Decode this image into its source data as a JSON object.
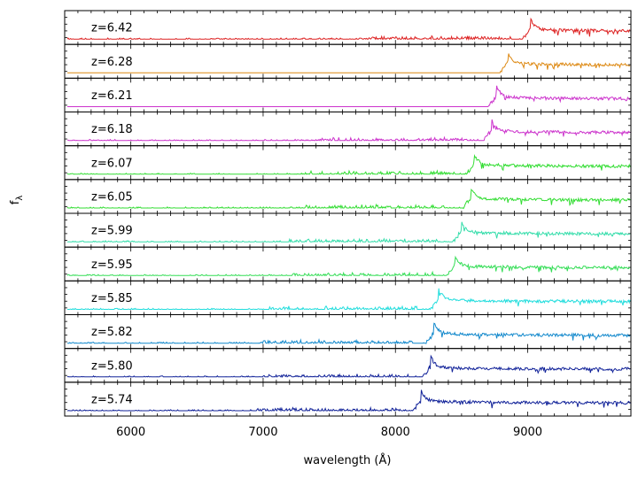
{
  "chart_data": {
    "type": "line",
    "title": "",
    "xlabel": "wavelength (Å)",
    "ylabel": "f",
    "ylabel_sub": "λ",
    "xlim": [
      5500,
      9780
    ],
    "xticks": [
      6000,
      7000,
      8000,
      9000
    ],
    "tick_labels": [
      "6000",
      "7000",
      "8000",
      "9000"
    ],
    "grid": false,
    "legend": "none",
    "series": [
      {
        "name": "z=6.42",
        "redshift": 6.42,
        "color": "#dd2222",
        "blue_noise": true,
        "flux": "normalized"
      },
      {
        "name": "z=6.28",
        "redshift": 6.28,
        "color": "#dd8811",
        "blue_noise": false,
        "flux": "normalized"
      },
      {
        "name": "z=6.21",
        "redshift": 6.21,
        "color": "#cc33cc",
        "blue_noise": false,
        "flux": "normalized"
      },
      {
        "name": "z=6.18",
        "redshift": 6.18,
        "color": "#cc33cc",
        "blue_noise": true,
        "flux": "normalized"
      },
      {
        "name": "z=6.07",
        "redshift": 6.07,
        "color": "#33dd33",
        "blue_noise": true,
        "flux": "normalized"
      },
      {
        "name": "z=6.05",
        "redshift": 6.05,
        "color": "#33dd33",
        "blue_noise": true,
        "flux": "normalized"
      },
      {
        "name": "z=5.99",
        "redshift": 5.99,
        "color": "#33ddaa",
        "blue_noise": true,
        "flux": "normalized"
      },
      {
        "name": "z=5.95",
        "redshift": 5.95,
        "color": "#33dd55",
        "blue_noise": true,
        "flux": "normalized"
      },
      {
        "name": "z=5.85",
        "redshift": 5.85,
        "color": "#22dddd",
        "blue_noise": true,
        "flux": "normalized"
      },
      {
        "name": "z=5.82",
        "redshift": 5.82,
        "color": "#1188cc",
        "blue_noise": true,
        "flux": "normalized"
      },
      {
        "name": "z=5.80",
        "redshift": 5.8,
        "color": "#112299",
        "blue_noise": true,
        "flux": "normalized"
      },
      {
        "name": "z=5.74",
        "redshift": 5.74,
        "color": "#112299",
        "blue_noise": true,
        "flux": "normalized"
      }
    ]
  }
}
